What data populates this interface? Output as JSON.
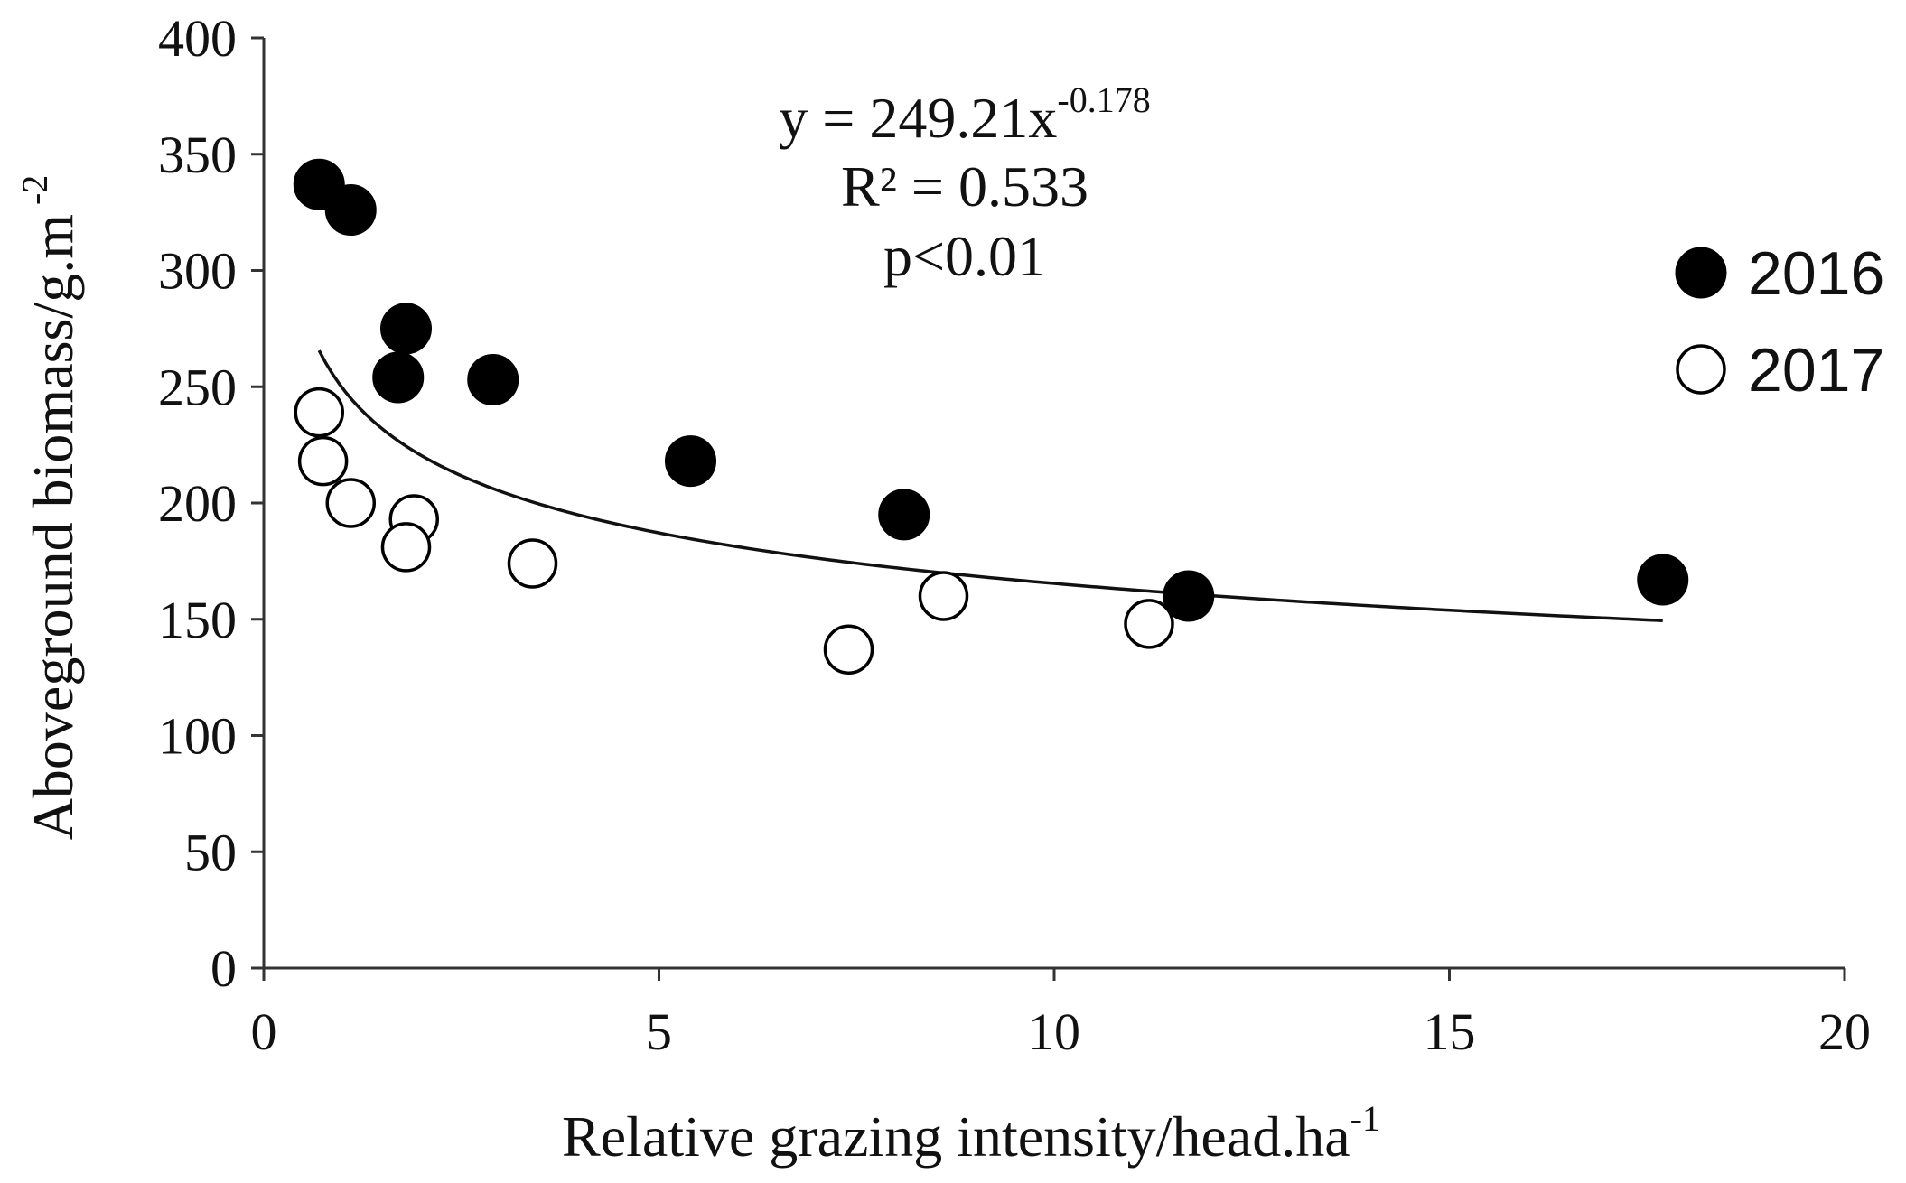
{
  "chart_data": {
    "type": "scatter",
    "title": "",
    "xlabel": "Relative grazing intensity/head.ha",
    "xlabel_sup": "-1",
    "ylabel": "Aboveground biomass/g.m",
    "ylabel_sup": "-2",
    "xlim": [
      0,
      20
    ],
    "ylim": [
      0,
      400
    ],
    "x_ticks": [
      "0",
      "5",
      "10",
      "15",
      "20"
    ],
    "y_ticks": [
      "0",
      "50",
      "100",
      "150",
      "200",
      "250",
      "300",
      "350",
      "400"
    ],
    "grid": false,
    "legend_position": "right",
    "series": [
      {
        "name": "2016",
        "marker": "filled-circle",
        "points": [
          {
            "x": 0.7,
            "y": 337
          },
          {
            "x": 1.1,
            "y": 326
          },
          {
            "x": 1.8,
            "y": 275
          },
          {
            "x": 1.7,
            "y": 254
          },
          {
            "x": 2.9,
            "y": 253
          },
          {
            "x": 5.4,
            "y": 218
          },
          {
            "x": 8.1,
            "y": 195
          },
          {
            "x": 11.7,
            "y": 160
          },
          {
            "x": 17.7,
            "y": 167
          }
        ]
      },
      {
        "name": "2017",
        "marker": "open-circle",
        "points": [
          {
            "x": 0.7,
            "y": 239
          },
          {
            "x": 0.75,
            "y": 218
          },
          {
            "x": 1.1,
            "y": 200
          },
          {
            "x": 1.9,
            "y": 193
          },
          {
            "x": 1.8,
            "y": 181
          },
          {
            "x": 3.4,
            "y": 174
          },
          {
            "x": 7.4,
            "y": 137
          },
          {
            "x": 8.6,
            "y": 160
          },
          {
            "x": 11.2,
            "y": 148
          }
        ]
      }
    ],
    "trendline": {
      "type": "power",
      "a": 249.21,
      "b": -0.178,
      "x_range": [
        0.7,
        17.7
      ],
      "equation_base": "y = 249.21x",
      "equation_exp": "-0.178",
      "r2_text": "R² = 0.533",
      "p_text": "p<0.01"
    },
    "colors": {
      "filled": "#000000",
      "open_fill": "#ffffff",
      "stroke": "#000000"
    }
  }
}
